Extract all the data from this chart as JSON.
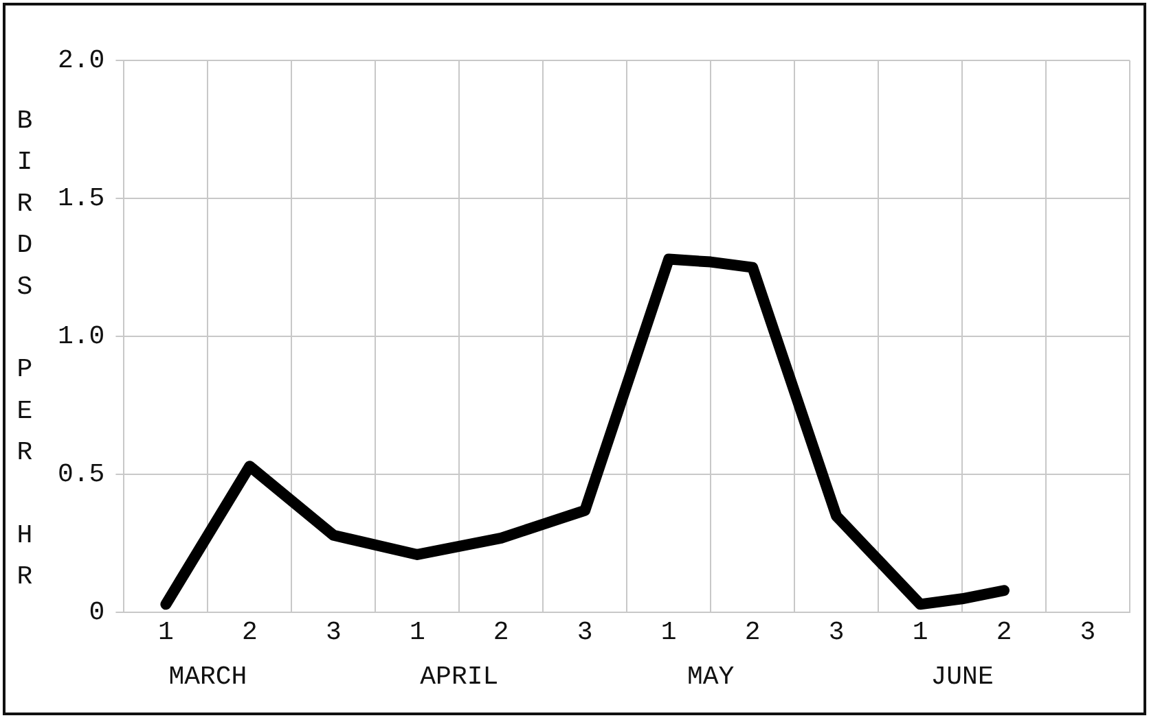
{
  "chart_data": {
    "type": "line",
    "ylabel": "BIRDS PER HR",
    "categories": [
      null,
      "1",
      null,
      "2",
      null,
      "3",
      null,
      "1",
      null,
      "2",
      null,
      "3",
      null,
      "1",
      null,
      "2",
      null,
      "3",
      null,
      "1",
      null,
      "2",
      null,
      "3",
      null
    ],
    "series": [
      {
        "color": "#000000",
        "values": [
          null,
          0.03,
          null,
          0.53,
          null,
          0.28,
          null,
          0.21,
          null,
          0.27,
          null,
          0.37,
          null,
          1.28,
          1.27,
          1.25,
          null,
          0.35,
          null,
          0.03,
          0.05,
          0.08,
          null,
          null,
          null
        ]
      }
    ],
    "ylim": [
      0,
      2
    ],
    "yticks": [
      0,
      {
        "value": 0.5,
        "label": "0.5"
      },
      {
        "value": 1,
        "label": "1.0"
      },
      {
        "value": 1.5,
        "label": "1.5"
      },
      {
        "value": 2,
        "label": "2.0"
      }
    ],
    "annotations": [
      "MARCH",
      "APRIL",
      "MAY",
      "JUNE"
    ],
    "grid": true,
    "legend": false,
    "marker": "none",
    "line_style": "solid"
  }
}
